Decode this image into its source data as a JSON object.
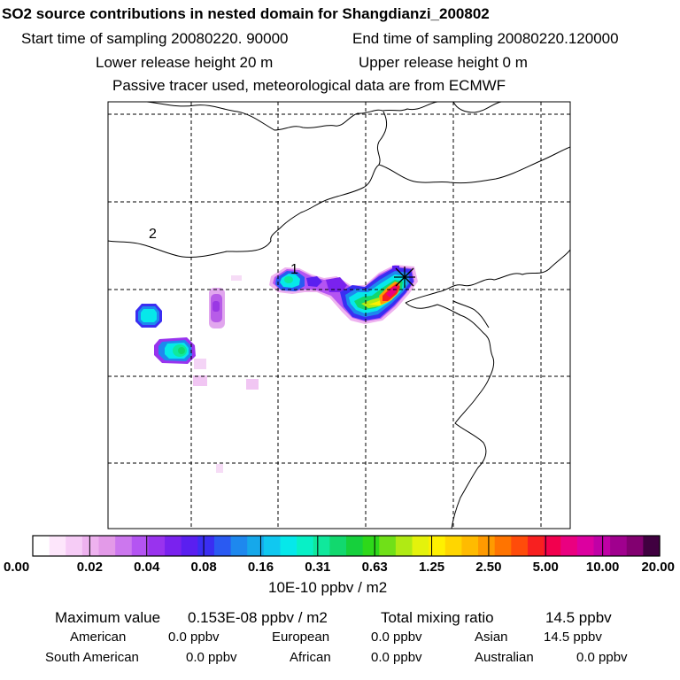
{
  "header": {
    "title": "SO2 source contributions in nested domain for Shangdianzi_200802",
    "start_time": "Start time of sampling 20080220. 90000",
    "end_time": "End time of sampling 20080220.120000",
    "lower_height": "Lower release height   20 m",
    "upper_height": "Upper release height    0 m",
    "tracer_info": "Passive tracer used, meteorological data are from ECMWF"
  },
  "map": {
    "labels": [
      "2",
      "1"
    ],
    "receptor_marker": "star-x-marker"
  },
  "legend": {
    "ticks": [
      "0.00",
      "0.02",
      "0.04",
      "0.08",
      "0.16",
      "0.31",
      "0.63",
      "1.25",
      "2.50",
      "5.00",
      "10.00",
      "20.00"
    ],
    "unit": "10E-10 ppbv / m2",
    "colors": [
      "#ffffff",
      "#fde6fb",
      "#f6ccf6",
      "#eeb2ef",
      "#e39ae8",
      "#cc77ee",
      "#b454f2",
      "#9933ee",
      "#7a22ee",
      "#5a1ff0",
      "#3a2ef2",
      "#2a5af2",
      "#1e88ee",
      "#16a8ea",
      "#10c8f0",
      "#06e8ea",
      "#08f0c6",
      "#10e89c",
      "#12d86e",
      "#16d03c",
      "#2ed81a",
      "#70e018",
      "#b0ea14",
      "#e4f20c",
      "#fff000",
      "#ffd600",
      "#ffbb00",
      "#ff9a00",
      "#ff7400",
      "#ff4c0a",
      "#f82020",
      "#f2004e",
      "#ea0080",
      "#dc00a0",
      "#c000a6",
      "#a0008e",
      "#820070",
      "#400040"
    ]
  },
  "summary": {
    "max_label": "Maximum value",
    "max_value": "0.153E-08 ppbv / m2",
    "total_label": "Total mixing ratio",
    "total_value": "14.5 ppbv",
    "regions": [
      {
        "name": "American",
        "value": "0.0 ppbv"
      },
      {
        "name": "European",
        "value": "0.0 ppbv"
      },
      {
        "name": "Asian",
        "value": "14.5 ppbv"
      },
      {
        "name": "South American",
        "value": "0.0 ppbv"
      },
      {
        "name": "African",
        "value": "0.0 ppbv"
      },
      {
        "name": "Australian",
        "value": "0.0 ppbv"
      }
    ]
  }
}
